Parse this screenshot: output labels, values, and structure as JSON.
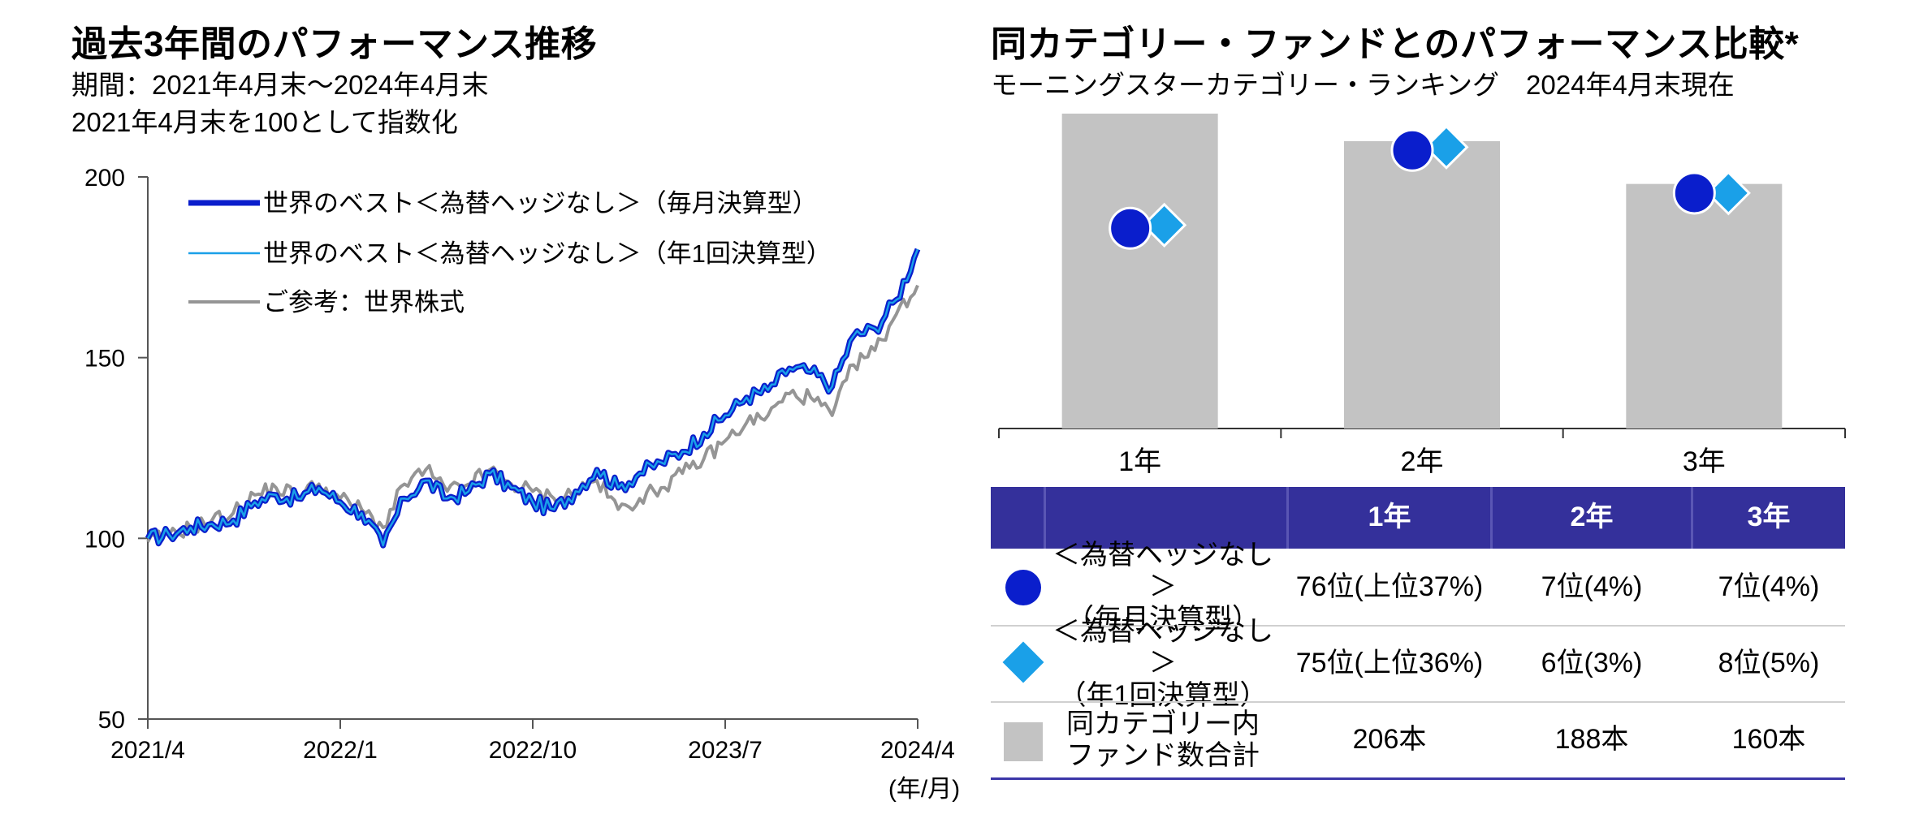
{
  "left": {
    "title": "過去3年間のパフォーマンス推移",
    "subtitle1": "期間：2021年4月末～2024年4月末",
    "subtitle2": "2021年4月末を100として指数化"
  },
  "right": {
    "title": "同カテゴリー・ファンドとのパフォーマンス比較*",
    "subtitle": "モーニングスターカテゴリー・ランキング　2024年4月末現在"
  },
  "colors": {
    "monthly": "#0A1ECC",
    "annual": "#1AA0E8",
    "reference": "#959595",
    "bar": "#C3C3C3",
    "table_header": "#34309B",
    "table_line": "#3B36A8"
  },
  "chart_data": [
    {
      "type": "line",
      "x_ticks": [
        "2021/4",
        "2022/1",
        "2022/10",
        "2023/7",
        "2024/4"
      ],
      "x_unit": "(年/月)",
      "ylim": [
        50,
        200
      ],
      "y_ticks": [
        50,
        100,
        150,
        200
      ],
      "legend_position": "top-left",
      "series": [
        {
          "name": "世界のベスト＜為替ヘッジなし＞（毎月決算型）",
          "color": "#0A1ECC",
          "x": [
            0,
            1,
            2,
            3,
            4,
            5,
            6,
            7,
            8,
            9,
            10,
            11,
            12,
            13,
            14,
            15,
            16,
            17,
            18,
            19,
            20,
            21,
            22,
            23,
            24,
            25,
            26,
            27,
            28,
            29,
            30,
            31,
            32,
            33,
            34,
            35,
            36
          ],
          "values": [
            100,
            101,
            103,
            104,
            105,
            110,
            112,
            111,
            114,
            110,
            107,
            98,
            111,
            116,
            111,
            113,
            118,
            114,
            110,
            108,
            113,
            119,
            114,
            118,
            121,
            124,
            129,
            134,
            139,
            141,
            147,
            146,
            142,
            156,
            158,
            166,
            180
          ]
        },
        {
          "name": "世界のベスト＜為替ヘッジなし＞（年1回決算型）",
          "color": "#1AA0E8",
          "x": [
            0,
            1,
            2,
            3,
            4,
            5,
            6,
            7,
            8,
            9,
            10,
            11,
            12,
            13,
            14,
            15,
            16,
            17,
            18,
            19,
            20,
            21,
            22,
            23,
            24,
            25,
            26,
            27,
            28,
            29,
            30,
            31,
            32,
            33,
            34,
            35,
            36
          ],
          "values": [
            100,
            101,
            103,
            104,
            105,
            110,
            112,
            111,
            114,
            110,
            107,
            98,
            111,
            116,
            111,
            113,
            118,
            114,
            110,
            108,
            113,
            119,
            114,
            118,
            121,
            124,
            129,
            134,
            139,
            141,
            147,
            146,
            142,
            156,
            158,
            166,
            180
          ]
        },
        {
          "name": "ご参考：世界株式",
          "color": "#959595",
          "x": [
            0,
            1,
            2,
            3,
            4,
            5,
            6,
            7,
            8,
            9,
            10,
            11,
            12,
            13,
            14,
            15,
            16,
            17,
            18,
            19,
            20,
            21,
            22,
            23,
            24,
            25,
            26,
            27,
            28,
            29,
            30,
            31,
            32,
            33,
            34,
            35,
            36
          ],
          "values": [
            99,
            101,
            103,
            105,
            107,
            112,
            114,
            112,
            115,
            111,
            108,
            103,
            115,
            119,
            113,
            115,
            119,
            115,
            113,
            111,
            113,
            116,
            108,
            111,
            114,
            118,
            122,
            127,
            132,
            134,
            140,
            139,
            134,
            148,
            152,
            162,
            170
          ]
        }
      ]
    },
    {
      "type": "bar",
      "categories": [
        "1年",
        "2年",
        "3年"
      ],
      "category_totals": [
        206,
        188,
        160
      ],
      "ranks_monthly": [
        76,
        7,
        7
      ],
      "ranks_annual": [
        75,
        6,
        8
      ]
    }
  ],
  "table": {
    "headers": [
      "",
      "",
      "1年",
      "2年",
      "3年"
    ],
    "rows": [
      {
        "label_line1": "＜為替ヘッジなし＞",
        "label_line2": "（毎月決算型）",
        "values": [
          "76位(上位37%)",
          "7位(4%)",
          "7位(4%)"
        ]
      },
      {
        "label_line1": "＜為替ヘッジなし＞",
        "label_line2": "（年1回決算型）",
        "values": [
          "75位(上位36%)",
          "6位(3%)",
          "8位(5%)"
        ]
      },
      {
        "label_line1": "同カテゴリー内",
        "label_line2": "ファンド数合計",
        "values": [
          "206本",
          "188本",
          "160本"
        ]
      }
    ]
  }
}
